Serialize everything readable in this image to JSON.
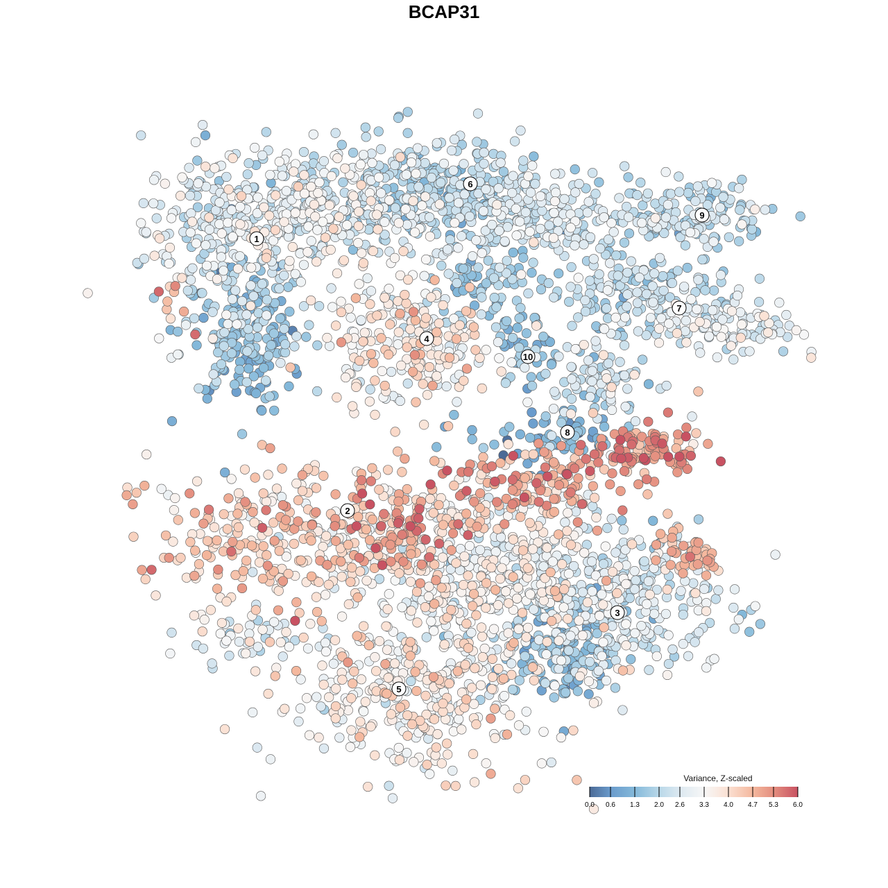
{
  "chart_data": {
    "type": "scatter",
    "title": "BCAP31",
    "xlabel": "",
    "ylabel": "",
    "xlim": [
      -45,
      50
    ],
    "ylim": [
      -46,
      46
    ],
    "grid": false,
    "point_groups_note_fields": [
      "cx",
      "cy",
      "sx",
      "sy",
      "n",
      "mean",
      "sd"
    ],
    "point_groups": [
      {
        "cx": -31,
        "cy": 31,
        "sx": 6,
        "sy": 6,
        "n": 260,
        "mean": 2.6,
        "sd": 0.6
      },
      {
        "cx": -29,
        "cy": 16,
        "sx": 4.5,
        "sy": 5,
        "n": 200,
        "mean": 1.5,
        "sd": 0.5
      },
      {
        "cx": -17,
        "cy": 34,
        "sx": 7,
        "sy": 4.5,
        "n": 260,
        "mean": 2.8,
        "sd": 0.6
      },
      {
        "cx": -39,
        "cy": 19,
        "sx": 1.2,
        "sy": 3,
        "n": 12,
        "mean": 4.5,
        "sd": 0.7
      },
      {
        "cx": -2,
        "cy": 36,
        "sx": 8,
        "sy": 4,
        "n": 300,
        "mean": 2.0,
        "sd": 0.5
      },
      {
        "cx": 12,
        "cy": 33,
        "sx": 7,
        "sy": 3.5,
        "n": 200,
        "mean": 2.5,
        "sd": 0.5
      },
      {
        "cx": 35,
        "cy": 33,
        "sx": 6,
        "sy": 2.5,
        "n": 150,
        "mean": 2.2,
        "sd": 0.5
      },
      {
        "cx": 28,
        "cy": 22,
        "sx": 7,
        "sy": 2.5,
        "n": 150,
        "mean": 2.0,
        "sd": 0.5
      },
      {
        "cx": 41,
        "cy": 17,
        "sx": 5,
        "sy": 2.2,
        "n": 110,
        "mean": 2.8,
        "sd": 0.5
      },
      {
        "cx": -5,
        "cy": 15,
        "sx": 6,
        "sy": 4.5,
        "n": 240,
        "mean": 3.5,
        "sd": 0.7
      },
      {
        "cx": 12,
        "cy": 13,
        "sx": 2.2,
        "sy": 3,
        "n": 40,
        "mean": 1.5,
        "sd": 0.5
      },
      {
        "cx": 6,
        "cy": 22,
        "sx": 4,
        "sy": 3,
        "n": 70,
        "mean": 1.5,
        "sd": 0.5
      },
      {
        "cx": 23,
        "cy": 10,
        "sx": 4,
        "sy": 3.5,
        "n": 100,
        "mean": 2.5,
        "sd": 0.6
      },
      {
        "cx": 29,
        "cy": -1,
        "sx": 4,
        "sy": 2,
        "n": 110,
        "mean": 5.0,
        "sd": 0.6
      },
      {
        "cx": 15,
        "cy": 1,
        "sx": 6,
        "sy": 2,
        "n": 70,
        "mean": 1.2,
        "sd": 0.5
      },
      {
        "cx": -24,
        "cy": -13,
        "sx": 9,
        "sy": 5,
        "n": 260,
        "mean": 4.2,
        "sd": 0.6
      },
      {
        "cx": -6,
        "cy": -12,
        "sx": 4,
        "sy": 4,
        "n": 100,
        "mean": 4.9,
        "sd": 0.7
      },
      {
        "cx": 11,
        "cy": -6,
        "sx": 7,
        "sy": 3,
        "n": 150,
        "mean": 4.6,
        "sd": 0.7
      },
      {
        "cx": 5,
        "cy": -18,
        "sx": 12,
        "sy": 6,
        "n": 480,
        "mean": 3.2,
        "sd": 0.6
      },
      {
        "cx": 25,
        "cy": -23,
        "sx": 8,
        "sy": 5,
        "n": 280,
        "mean": 2.5,
        "sd": 0.6
      },
      {
        "cx": 17,
        "cy": -30,
        "sx": 4,
        "sy": 4,
        "n": 120,
        "mean": 1.3,
        "sd": 0.4
      },
      {
        "cx": 35,
        "cy": -16,
        "sx": 3,
        "sy": 1.5,
        "n": 50,
        "mean": 4.5,
        "sd": 0.5
      },
      {
        "cx": -4,
        "cy": -36,
        "sx": 10,
        "sy": 5.5,
        "n": 380,
        "mean": 3.5,
        "sd": 0.6
      },
      {
        "cx": -29,
        "cy": -28,
        "sx": 5,
        "sy": 2,
        "n": 45,
        "mean": 2.8,
        "sd": 0.5
      }
    ],
    "cluster_labels": [
      {
        "text": "1",
        "x": -27,
        "y": 29.6
      },
      {
        "text": "2",
        "x": -13.9,
        "y": -9.6
      },
      {
        "text": "3",
        "x": 25,
        "y": -24.3
      },
      {
        "text": "4",
        "x": -2.5,
        "y": 15.2
      },
      {
        "text": "5",
        "x": -6.5,
        "y": -35.3
      },
      {
        "text": "6",
        "x": 3.8,
        "y": 37.5
      },
      {
        "text": "7",
        "x": 33.9,
        "y": 19.6
      },
      {
        "text": "8",
        "x": 17.8,
        "y": 1.7
      },
      {
        "text": "9",
        "x": 37.2,
        "y": 33
      },
      {
        "text": "10",
        "x": 12.1,
        "y": 12.6
      }
    ],
    "legend": {
      "title": "Variance, Z-scaled",
      "placement": "bottom-right",
      "range": [
        0,
        6
      ],
      "ticks": [
        "0.0",
        "0.6",
        "1.3",
        "2.0",
        "2.6",
        "3.3",
        "4.0",
        "4.7",
        "5.3",
        "6.0"
      ],
      "tick_values": [
        0,
        0.6,
        1.3,
        2.0,
        2.6,
        3.3,
        4.0,
        4.7,
        5.3,
        6.0
      ],
      "colors": [
        "#4b6a96",
        "#6a9bcc",
        "#84b9da",
        "#b9d8e9",
        "#dde9f1",
        "#f7f7f7",
        "#fbe0d2",
        "#f4b89e",
        "#e48e7f",
        "#c85262"
      ]
    }
  }
}
